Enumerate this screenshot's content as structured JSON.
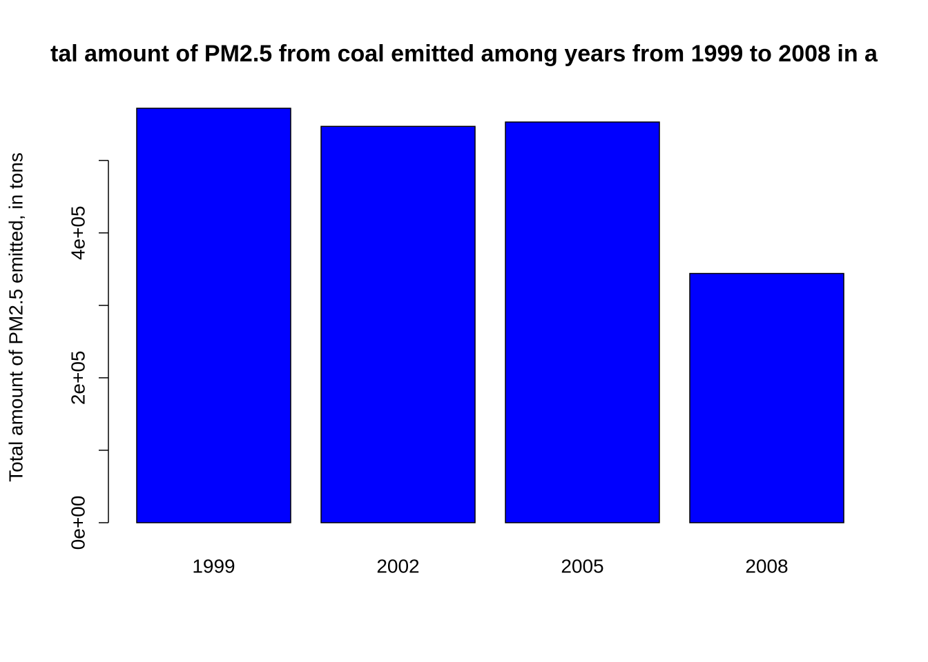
{
  "chart_data": {
    "type": "bar",
    "title": "tal amount of PM2.5 from coal emitted among years from 1999 to 2008 in a",
    "y_label": "Total amount of PM2.5 emitted, in tons",
    "categories": [
      "1999",
      "2002",
      "2005",
      "2008"
    ],
    "values": [
      572000,
      547000,
      553000,
      344000
    ],
    "color": "#0000ff",
    "ylim": [
      0,
      572000
    ],
    "yticks": [
      {
        "value": 0,
        "label": "0e+00"
      },
      {
        "value": 100000,
        "label": null
      },
      {
        "value": 200000,
        "label": "2e+05"
      },
      {
        "value": 300000,
        "label": null
      },
      {
        "value": 400000,
        "label": "4e+05"
      },
      {
        "value": 500000,
        "label": null
      }
    ],
    "grid": false
  }
}
